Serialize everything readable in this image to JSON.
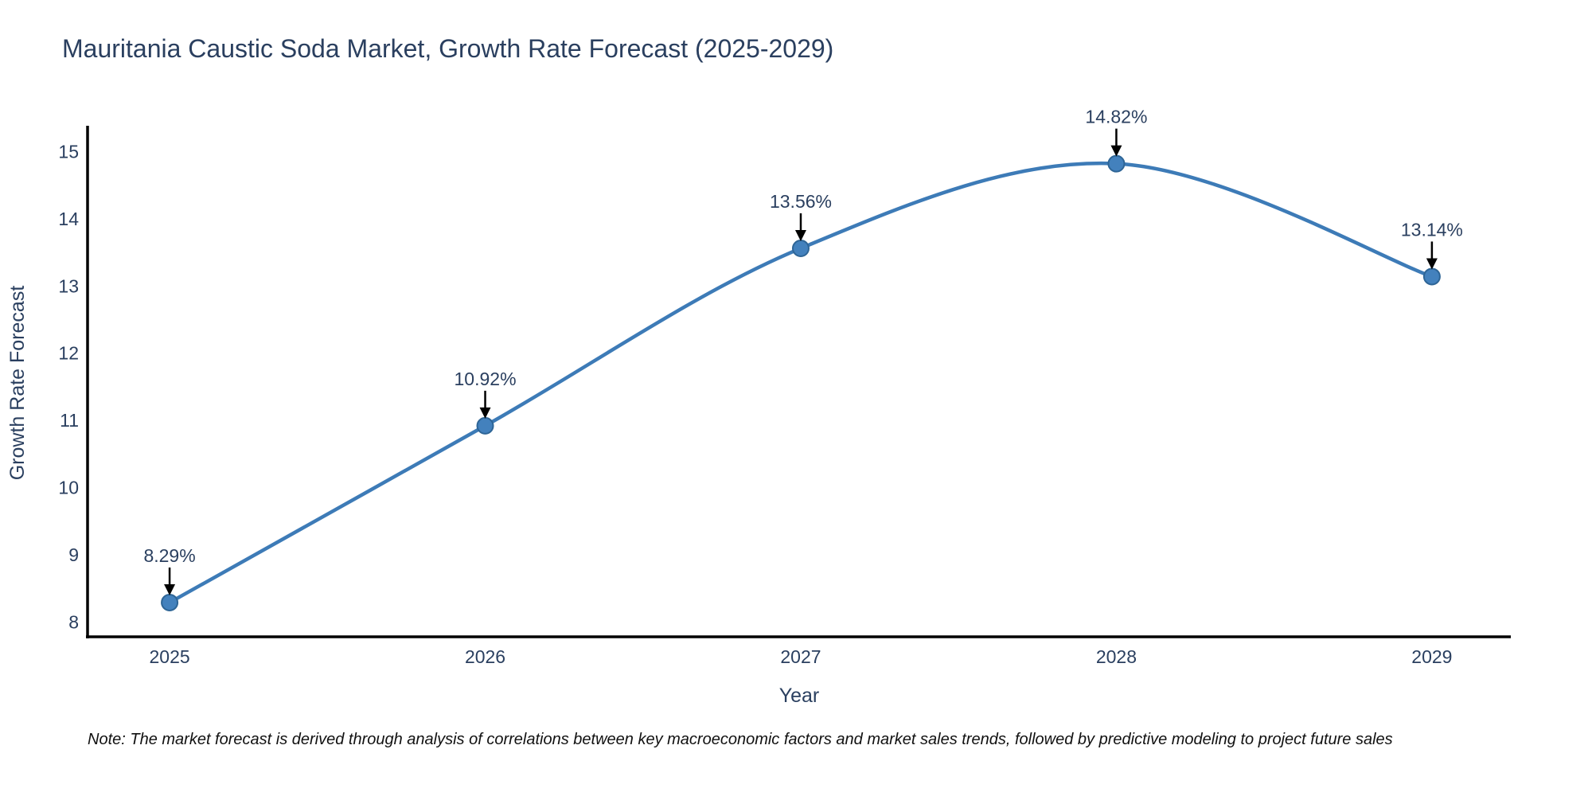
{
  "title": "Mauritania Caustic Soda Market, Growth Rate Forecast (2025-2029)",
  "note": "Note: The market forecast is derived through analysis of correlations between key macroeconomic factors and market sales trends, followed by predictive modeling to project future sales",
  "chart_data": {
    "type": "line",
    "title": "Mauritania Caustic Soda Market, Growth Rate Forecast (2025-2029)",
    "xlabel": "Year",
    "ylabel": "Growth Rate Forecast",
    "x": [
      2025,
      2026,
      2027,
      2028,
      2029
    ],
    "series": [
      {
        "name": "Growth Rate Forecast",
        "values": [
          8.29,
          10.92,
          13.56,
          14.82,
          13.14
        ]
      }
    ],
    "point_labels": [
      "8.29%",
      "10.92%",
      "13.56%",
      "14.82%",
      "13.14%"
    ],
    "xticks": [
      2025,
      2026,
      2027,
      2028,
      2029
    ],
    "yticks": [
      8,
      9,
      10,
      11,
      12,
      13,
      14,
      15
    ],
    "xlim": [
      2024.74,
      2029.25
    ],
    "ylim": [
      7.78,
      15.36
    ],
    "grid": false,
    "legend": "none",
    "line_shape": "spline",
    "colors": {
      "line": "#3d7bb7",
      "marker_fill": "#4381bd",
      "marker_edge": "#2e6596",
      "axis": "#000000",
      "text": "#2a3f5f",
      "note_text": "#111111",
      "arrow": "#000000",
      "background": "#ffffff"
    }
  }
}
